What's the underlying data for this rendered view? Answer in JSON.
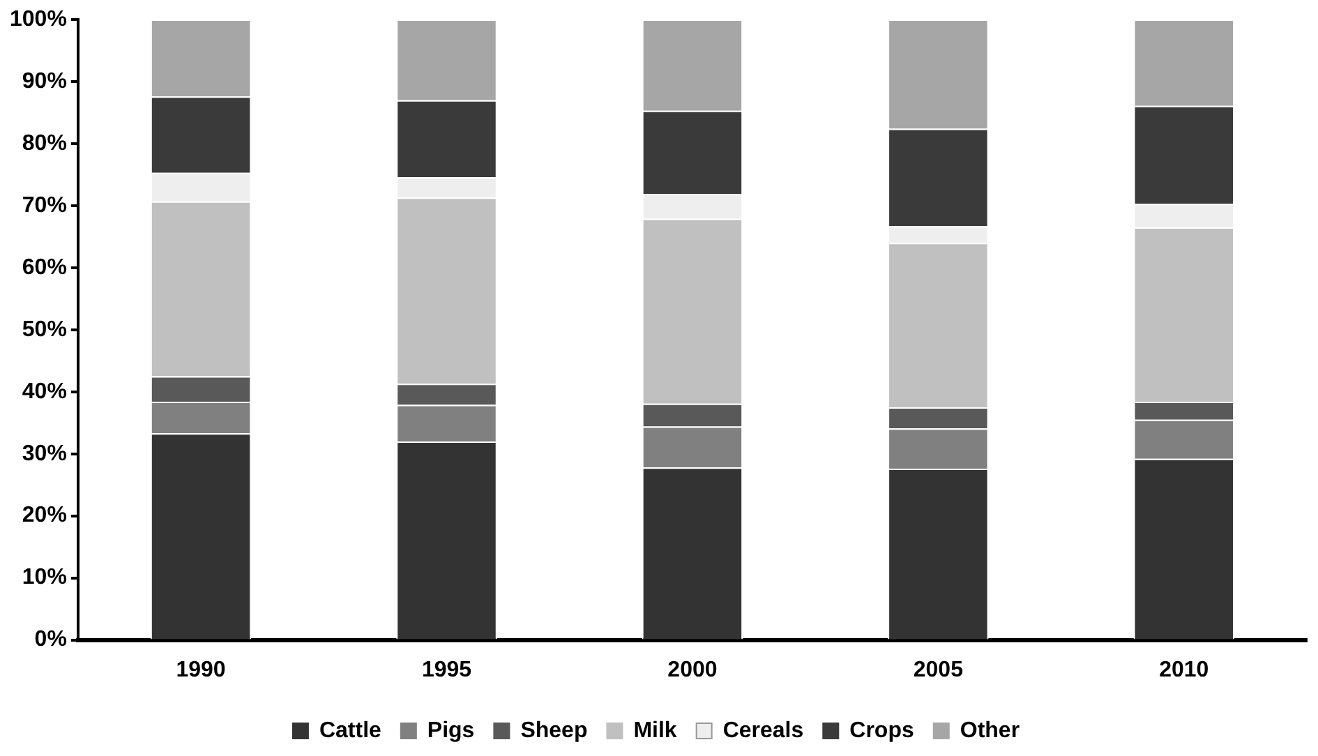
{
  "chart_data": {
    "type": "bar",
    "stacked": true,
    "categories": [
      "1990",
      "1995",
      "2000",
      "2005",
      "2010"
    ],
    "series": [
      {
        "name": "Cattle",
        "color": "#333333",
        "values": [
          33.3,
          32.0,
          27.8,
          27.6,
          29.2
        ]
      },
      {
        "name": "Pigs",
        "color": "#808080",
        "values": [
          5.1,
          5.9,
          6.6,
          6.5,
          6.3
        ]
      },
      {
        "name": "Sheep",
        "color": "#595959",
        "values": [
          4.1,
          3.4,
          3.7,
          3.4,
          2.9
        ]
      },
      {
        "name": "Milk",
        "color": "#c0c0c0",
        "values": [
          28.2,
          30.0,
          29.8,
          26.5,
          28.1
        ]
      },
      {
        "name": "Cereals",
        "color": "#eeeeee",
        "values": [
          4.6,
          3.3,
          4.0,
          2.7,
          3.8
        ]
      },
      {
        "name": "Crops",
        "color": "#3a3a3a",
        "values": [
          12.3,
          12.4,
          13.4,
          15.7,
          15.8
        ]
      },
      {
        "name": "Other",
        "color": "#a6a6a6",
        "values": [
          12.4,
          13.0,
          14.7,
          17.6,
          13.9
        ]
      }
    ],
    "ylim": [
      0,
      100
    ],
    "yticks": [
      {
        "value": 0,
        "label": "0%"
      },
      {
        "value": 10,
        "label": "10%"
      },
      {
        "value": 20,
        "label": "20%"
      },
      {
        "value": 30,
        "label": "30%"
      },
      {
        "value": 40,
        "label": "40%"
      },
      {
        "value": 50,
        "label": "50%"
      },
      {
        "value": 60,
        "label": "60%"
      },
      {
        "value": 70,
        "label": "70%"
      },
      {
        "value": 80,
        "label": "80%"
      },
      {
        "value": 90,
        "label": "90%"
      },
      {
        "value": 100,
        "label": "100%"
      }
    ],
    "grid": false,
    "legend": "bottom"
  }
}
